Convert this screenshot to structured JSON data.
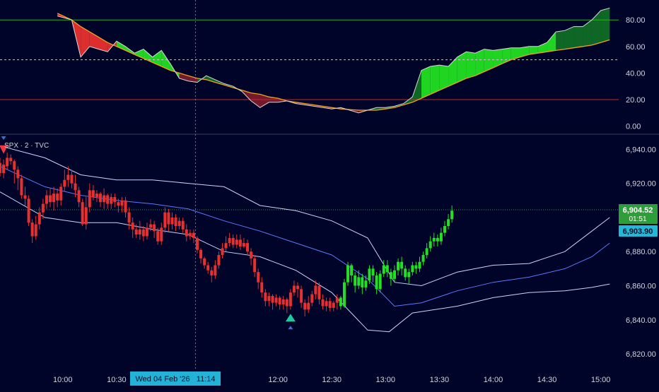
{
  "colors": {
    "background": "#000428",
    "axis_text": "#d1d4dc",
    "separator": "#3a3f5c",
    "bull": "#22e022",
    "bear": "#e8302e",
    "band": "#c9d3ff",
    "mid_band": "#5b78ff",
    "osc_signal": "#f0a020",
    "osc_line": "#d8d8d8",
    "overbought": "#2ab02a",
    "oversold": "#c0282e",
    "price_badge": "#2e9e3a",
    "prev_badge": "#22b8d8",
    "time_badge": "#23b3d8",
    "buy_marker": "#22c6a0",
    "sell_marker": "#f23645",
    "marker_small": "#3c6ed8"
  },
  "symbol_label": "SPX · 2 · TVC",
  "current_price": {
    "value": "6,904.52",
    "countdown": "01:51"
  },
  "previous_close": {
    "value": "6,903.90"
  },
  "crosshair_time": "Wed 04 Feb '26   11:14",
  "chart_data": [
    {
      "type": "area",
      "panel": "oscillator",
      "ylim": [
        -5,
        95
      ],
      "y_ticks": [
        "80.00",
        "60.00",
        "40.00",
        "20.00",
        "0.00"
      ],
      "levels": {
        "overbought": 80,
        "midline": 50,
        "oversold": 20
      },
      "x_minutes_from_0930": [
        27,
        35,
        40,
        45,
        50,
        55,
        60,
        65,
        70,
        75,
        80,
        85,
        90,
        95,
        100,
        105,
        110,
        115,
        120,
        125,
        130,
        135,
        140,
        145,
        150,
        155,
        160,
        165,
        170,
        175,
        180,
        185,
        190,
        195,
        200,
        205,
        210,
        215,
        220,
        225,
        230,
        235,
        240,
        245,
        250,
        255,
        260,
        265,
        270,
        275,
        280,
        285,
        290,
        295,
        300,
        305,
        310,
        315,
        320,
        325,
        330,
        335
      ],
      "series": [
        {
          "name": "",
          "role": "oscillator",
          "values": [
            83,
            80,
            52,
            60,
            58,
            56,
            64,
            60,
            55,
            58,
            52,
            57,
            47,
            36,
            34,
            33,
            38,
            35,
            32,
            30,
            26,
            19,
            14,
            18,
            18,
            19,
            17,
            16,
            15,
            14,
            13,
            14,
            12,
            10,
            12,
            14,
            14,
            15,
            17,
            22,
            42,
            45,
            46,
            45,
            52,
            56,
            55,
            58,
            57,
            58,
            59,
            59,
            60,
            60,
            63,
            71,
            72,
            75,
            75,
            80,
            87,
            89
          ]
        },
        {
          "name": "",
          "role": "signal",
          "values": [
            85,
            80,
            75,
            71,
            67,
            63,
            60,
            57,
            54,
            51,
            48,
            45,
            42,
            40,
            38,
            36,
            35,
            33,
            31,
            29,
            27,
            25,
            24,
            22,
            21,
            19,
            18,
            17,
            16,
            15,
            14,
            13,
            12.5,
            12,
            12,
            12,
            13,
            14,
            16,
            18,
            21,
            24,
            27,
            30,
            33,
            36,
            38,
            41,
            44,
            47,
            50,
            52,
            54,
            55,
            56,
            57,
            58,
            59,
            60,
            61,
            63,
            65
          ]
        }
      ]
    },
    {
      "type": "candlestick",
      "panel": "price",
      "symbol": "SPX",
      "ylim": [
        6813,
        6948
      ],
      "y_ticks": [
        "6,940.00",
        "6,920.00",
        "6,900.00",
        "6,880.00",
        "6,860.00",
        "6,840.00",
        "6,820.00"
      ],
      "x_range_minutes_from_0930": [
        -5,
        340
      ],
      "x_ticks": [
        {
          "label": "10:00",
          "minute": 30
        },
        {
          "label": "10:30",
          "minute": 60
        },
        {
          "label": "12:00",
          "minute": 150
        },
        {
          "label": "12:30",
          "minute": 180
        },
        {
          "label": "13:00",
          "minute": 210
        },
        {
          "label": "13:30",
          "minute": 240
        },
        {
          "label": "14:00",
          "minute": 270
        },
        {
          "label": "14:30",
          "minute": 300
        },
        {
          "label": "15:00",
          "minute": 330
        }
      ],
      "crosshair_minute": 104,
      "price_line": 6904.52,
      "candles": [
        [
          6932,
          6926,
          6935,
          6924
        ],
        [
          6926,
          6931,
          6934,
          6923
        ],
        [
          6930,
          6935,
          6938,
          6928
        ],
        [
          6935,
          6933,
          6937,
          6931
        ],
        [
          6933,
          6928,
          6934,
          6920
        ],
        [
          6928,
          6923,
          6930,
          6916
        ],
        [
          6923,
          6913,
          6925,
          6911
        ],
        [
          6913,
          6911,
          6918,
          6907
        ],
        [
          6911,
          6897,
          6913,
          6895
        ],
        [
          6897,
          6889,
          6899,
          6885
        ],
        [
          6889,
          6896,
          6901,
          6887
        ],
        [
          6896,
          6903,
          6906,
          6893
        ],
        [
          6903,
          6908,
          6911,
          6899
        ],
        [
          6908,
          6913,
          6916,
          6905
        ],
        [
          6913,
          6909,
          6917,
          6906
        ],
        [
          6909,
          6914,
          6918,
          6904
        ],
        [
          6914,
          6910,
          6917,
          6906
        ],
        [
          6910,
          6918,
          6920,
          6907
        ],
        [
          6918,
          6922,
          6928,
          6915
        ],
        [
          6922,
          6925,
          6930,
          6918
        ],
        [
          6925,
          6920,
          6928,
          6917
        ],
        [
          6920,
          6916,
          6925,
          6912
        ],
        [
          6916,
          6909,
          6918,
          6906
        ],
        [
          6909,
          6896,
          6911,
          6895
        ],
        [
          6896,
          6906,
          6912,
          6893
        ],
        [
          6906,
          6916,
          6920,
          6903
        ],
        [
          6916,
          6912,
          6919,
          6910
        ],
        [
          6912,
          6914,
          6916,
          6909
        ],
        [
          6914,
          6909,
          6915,
          6906
        ],
        [
          6909,
          6913,
          6917,
          6905
        ],
        [
          6913,
          6908,
          6914,
          6905
        ],
        [
          6908,
          6912,
          6914,
          6905
        ],
        [
          6912,
          6909,
          6914,
          6906
        ],
        [
          6909,
          6907,
          6911,
          6903
        ],
        [
          6907,
          6910,
          6912,
          6903
        ],
        [
          6910,
          6903,
          6912,
          6900
        ],
        [
          6903,
          6897,
          6906,
          6893
        ],
        [
          6897,
          6893,
          6900,
          6888
        ],
        [
          6893,
          6890,
          6896,
          6888
        ],
        [
          6890,
          6893,
          6898,
          6887
        ],
        [
          6893,
          6889,
          6895,
          6886
        ],
        [
          6889,
          6894,
          6897,
          6887
        ],
        [
          6894,
          6896,
          6899,
          6892
        ],
        [
          6896,
          6892,
          6898,
          6888
        ],
        [
          6892,
          6886,
          6894,
          6884
        ],
        [
          6886,
          6894,
          6897,
          6884
        ],
        [
          6894,
          6903,
          6906,
          6891
        ],
        [
          6903,
          6896,
          6905,
          6892
        ],
        [
          6896,
          6900,
          6903,
          6893
        ],
        [
          6900,
          6895,
          6902,
          6892
        ],
        [
          6895,
          6898,
          6900,
          6893
        ],
        [
          6898,
          6893,
          6900,
          6891
        ],
        [
          6893,
          6889,
          6896,
          6886
        ],
        [
          6889,
          6891,
          6893,
          6887
        ],
        [
          6891,
          6888,
          6893,
          6885
        ],
        [
          6888,
          6881,
          6889,
          6879
        ],
        [
          6881,
          6876,
          6882,
          6873
        ],
        [
          6876,
          6872,
          6877,
          6870
        ],
        [
          6872,
          6869,
          6874,
          6867
        ],
        [
          6869,
          6866,
          6871,
          6862
        ],
        [
          6866,
          6872,
          6875,
          6864
        ],
        [
          6872,
          6878,
          6880,
          6870
        ],
        [
          6878,
          6882,
          6885,
          6876
        ],
        [
          6882,
          6885,
          6889,
          6880
        ],
        [
          6885,
          6888,
          6891,
          6883
        ],
        [
          6888,
          6884,
          6890,
          6882
        ],
        [
          6884,
          6887,
          6890,
          6882
        ],
        [
          6887,
          6883,
          6890,
          6881
        ],
        [
          6883,
          6885,
          6888,
          6882
        ],
        [
          6885,
          6880,
          6887,
          6878
        ],
        [
          6880,
          6876,
          6882,
          6872
        ],
        [
          6876,
          6868,
          6878,
          6865
        ],
        [
          6868,
          6862,
          6870,
          6858
        ],
        [
          6862,
          6856,
          6865,
          6853
        ],
        [
          6856,
          6851,
          6858,
          6848
        ],
        [
          6851,
          6854,
          6856,
          6848
        ],
        [
          6854,
          6850,
          6855,
          6846
        ],
        [
          6850,
          6853,
          6855,
          6848
        ],
        [
          6853,
          6849,
          6854,
          6846
        ],
        [
          6849,
          6852,
          6854,
          6846
        ],
        [
          6852,
          6848,
          6853,
          6844
        ],
        [
          6848,
          6856,
          6858,
          6846
        ],
        [
          6856,
          6860,
          6863,
          6854
        ],
        [
          6860,
          6858,
          6862,
          6853
        ],
        [
          6858,
          6850,
          6860,
          6847
        ],
        [
          6850,
          6846,
          6852,
          6842
        ],
        [
          6846,
          6850,
          6854,
          6844
        ],
        [
          6850,
          6855,
          6857,
          6848
        ],
        [
          6855,
          6860,
          6863,
          6852
        ],
        [
          6860,
          6852,
          6862,
          6849
        ],
        [
          6852,
          6848,
          6855,
          6846
        ],
        [
          6848,
          6851,
          6853,
          6845
        ],
        [
          6851,
          6847,
          6853,
          6845
        ],
        [
          6847,
          6850,
          6851,
          6845
        ],
        [
          6850,
          6853,
          6855,
          6846
        ],
        [
          6853,
          6848,
          6854,
          6846
        ],
        [
          6848,
          6862,
          6864,
          6847
        ],
        [
          6862,
          6872,
          6874,
          6860
        ],
        [
          6872,
          6866,
          6873,
          6862
        ],
        [
          6866,
          6860,
          6868,
          6856
        ],
        [
          6860,
          6865,
          6869,
          6858
        ],
        [
          6865,
          6859,
          6867,
          6855
        ],
        [
          6859,
          6863,
          6866,
          6857
        ],
        [
          6863,
          6870,
          6872,
          6861
        ],
        [
          6870,
          6866,
          6872,
          6862
        ],
        [
          6866,
          6858,
          6868,
          6855
        ],
        [
          6858,
          6867,
          6869,
          6856
        ],
        [
          6867,
          6872,
          6875,
          6865
        ],
        [
          6872,
          6868,
          6875,
          6865
        ],
        [
          6868,
          6864,
          6870,
          6860
        ],
        [
          6864,
          6869,
          6872,
          6862
        ],
        [
          6869,
          6874,
          6876,
          6866
        ],
        [
          6874,
          6870,
          6877,
          6866
        ],
        [
          6870,
          6865,
          6872,
          6863
        ],
        [
          6865,
          6868,
          6870,
          6861
        ],
        [
          6868,
          6872,
          6874,
          6866
        ],
        [
          6872,
          6870,
          6874,
          6867
        ],
        [
          6870,
          6874,
          6877,
          6868
        ],
        [
          6874,
          6878,
          6880,
          6872
        ],
        [
          6878,
          6882,
          6885,
          6876
        ],
        [
          6882,
          6886,
          6889,
          6880
        ],
        [
          6886,
          6888,
          6891,
          6883
        ],
        [
          6888,
          6886,
          6890,
          6883
        ],
        [
          6886,
          6891,
          6894,
          6884
        ],
        [
          6891,
          6895,
          6898,
          6889
        ],
        [
          6895,
          6899,
          6902,
          6893
        ],
        [
          6899,
          6904,
          6907,
          6897
        ]
      ],
      "bands": {
        "upper": [
          [
            -5,
            6942
          ],
          [
            20,
            6935
          ],
          [
            40,
            6925
          ],
          [
            60,
            6922
          ],
          [
            80,
            6922
          ],
          [
            100,
            6920
          ],
          [
            120,
            6918
          ],
          [
            140,
            6907
          ],
          [
            160,
            6904
          ],
          [
            180,
            6898
          ],
          [
            200,
            6888
          ],
          [
            215,
            6862
          ],
          [
            230,
            6860
          ],
          [
            250,
            6868
          ],
          [
            270,
            6872
          ],
          [
            290,
            6873
          ],
          [
            310,
            6880
          ],
          [
            325,
            6892
          ],
          [
            335,
            6900
          ]
        ],
        "middle": [
          [
            -5,
            6930
          ],
          [
            20,
            6918
          ],
          [
            40,
            6913
          ],
          [
            60,
            6910
          ],
          [
            80,
            6908
          ],
          [
            100,
            6905
          ],
          [
            120,
            6898
          ],
          [
            140,
            6892
          ],
          [
            160,
            6885
          ],
          [
            180,
            6878
          ],
          [
            200,
            6864
          ],
          [
            215,
            6848
          ],
          [
            230,
            6850
          ],
          [
            250,
            6857
          ],
          [
            270,
            6862
          ],
          [
            290,
            6865
          ],
          [
            310,
            6870
          ],
          [
            325,
            6877
          ],
          [
            335,
            6885
          ]
        ],
        "lower": [
          [
            -5,
            6915
          ],
          [
            20,
            6900
          ],
          [
            40,
            6897
          ],
          [
            60,
            6897
          ],
          [
            80,
            6893
          ],
          [
            100,
            6890
          ],
          [
            120,
            6880
          ],
          [
            140,
            6877
          ],
          [
            160,
            6869
          ],
          [
            180,
            6856
          ],
          [
            200,
            6834
          ],
          [
            212,
            6833
          ],
          [
            225,
            6844
          ],
          [
            250,
            6848
          ],
          [
            270,
            6853
          ],
          [
            290,
            6856
          ],
          [
            310,
            6857
          ],
          [
            325,
            6859
          ],
          [
            335,
            6861
          ]
        ]
      },
      "markers": [
        {
          "type": "sell",
          "candle": 1
        },
        {
          "type": "buy",
          "candle": 81
        }
      ]
    }
  ]
}
